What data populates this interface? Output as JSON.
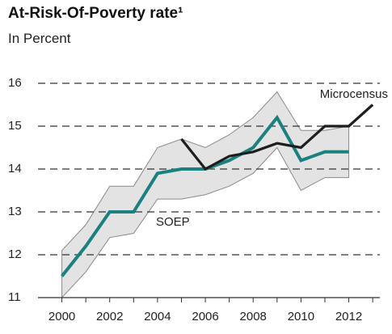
{
  "chart_data": {
    "type": "line",
    "title": "At-Risk-Of-Poverty rate¹",
    "subtitle": "In Percent",
    "x": [
      2000,
      2001,
      2002,
      2003,
      2004,
      2005,
      2006,
      2007,
      2008,
      2009,
      2010,
      2011,
      2012,
      2013
    ],
    "series": [
      {
        "name": "SOEP",
        "color": "#1b8080",
        "values": [
          11.5,
          12.2,
          13.0,
          13.0,
          13.9,
          14.0,
          14.0,
          14.2,
          14.5,
          15.2,
          14.2,
          14.4,
          14.4,
          null
        ]
      },
      {
        "name": "Microcensus",
        "color": "#1e1e1e",
        "values": [
          null,
          null,
          null,
          null,
          null,
          14.7,
          14.0,
          14.3,
          14.4,
          14.6,
          14.5,
          15.0,
          15.0,
          15.5
        ]
      }
    ],
    "band": {
      "color": "#e3e3e3",
      "upper": [
        12.1,
        12.7,
        13.6,
        13.6,
        14.5,
        14.7,
        14.5,
        14.8,
        15.2,
        15.8,
        14.9,
        14.9,
        15.0,
        null
      ],
      "lower": [
        11.0,
        11.6,
        12.4,
        12.5,
        13.3,
        13.3,
        13.4,
        13.6,
        13.9,
        14.5,
        13.5,
        13.8,
        13.8,
        null
      ]
    },
    "xlim": [
      1999,
      2013.3
    ],
    "xticks": [
      2000,
      2002,
      2004,
      2006,
      2008,
      2010,
      2012
    ],
    "ylim": [
      11,
      16
    ],
    "yticks": [
      11,
      12,
      13,
      14,
      15,
      16
    ],
    "grid": true
  }
}
